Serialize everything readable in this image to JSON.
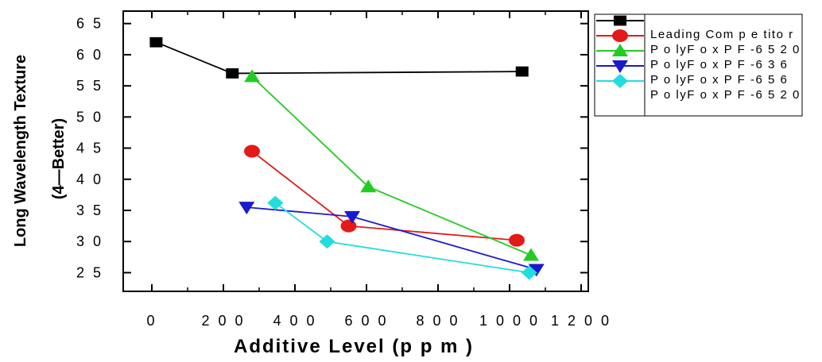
{
  "chart_data": {
    "type": "line",
    "xlabel": "Additive Level (p p m )",
    "ylabel_line1": "Long Wavelength Texture",
    "ylabel_line2": "(4—Better)",
    "xlim": [
      -80,
      1220
    ],
    "ylim": [
      22,
      67
    ],
    "x_ticks": [
      0,
      200,
      400,
      600,
      800,
      1000,
      1200
    ],
    "x_tick_labels": [
      "0",
      "200",
      "400",
      "600",
      "800",
      "1000",
      "1200"
    ],
    "x_tick_labels_text": [
      "0",
      "2 0 0",
      "4 0 0",
      "6 0 0",
      "8 0 0",
      "1 0 0 0",
      "1 2 0 0"
    ],
    "y_ticks": [
      25,
      30,
      35,
      40,
      45,
      50,
      55,
      60,
      65
    ],
    "y_tick_labels": [
      "2 5",
      "3 0",
      "3 5",
      "4 0",
      "4 5",
      "5 0",
      "5 5",
      "6 0",
      "6 5"
    ],
    "grid": false,
    "legend_position": "right",
    "series": [
      {
        "name": "Leading Com p e tito r",
        "color": "#000000",
        "marker": "square",
        "x": [
          12,
          225,
          1035
        ],
        "y": [
          62,
          57,
          57.3
        ]
      },
      {
        "name": "P o lyF o x P F -6 5 2 0",
        "color": "#e41a1a",
        "marker": "circle",
        "x": [
          280,
          550,
          1020
        ],
        "y": [
          44.5,
          32.5,
          30.2
        ]
      },
      {
        "name": "P o lyF o x P F -6 3 6",
        "color": "#22cc22",
        "marker": "triangle-up",
        "x": [
          280,
          605,
          1060
        ],
        "y": [
          56.5,
          38.8,
          27.8
        ]
      },
      {
        "name": "P o lyF o x P F -6 5 6",
        "color": "#1a1acc",
        "marker": "triangle-down",
        "x": [
          265,
          560,
          1075
        ],
        "y": [
          35.5,
          34,
          25.5
        ]
      },
      {
        "name": "P o lyF o x P F -6 5 2 0",
        "color": "#22dddd",
        "marker": "diamond",
        "x": [
          345,
          490,
          1055
        ],
        "y": [
          36.2,
          30,
          25
        ]
      }
    ]
  }
}
